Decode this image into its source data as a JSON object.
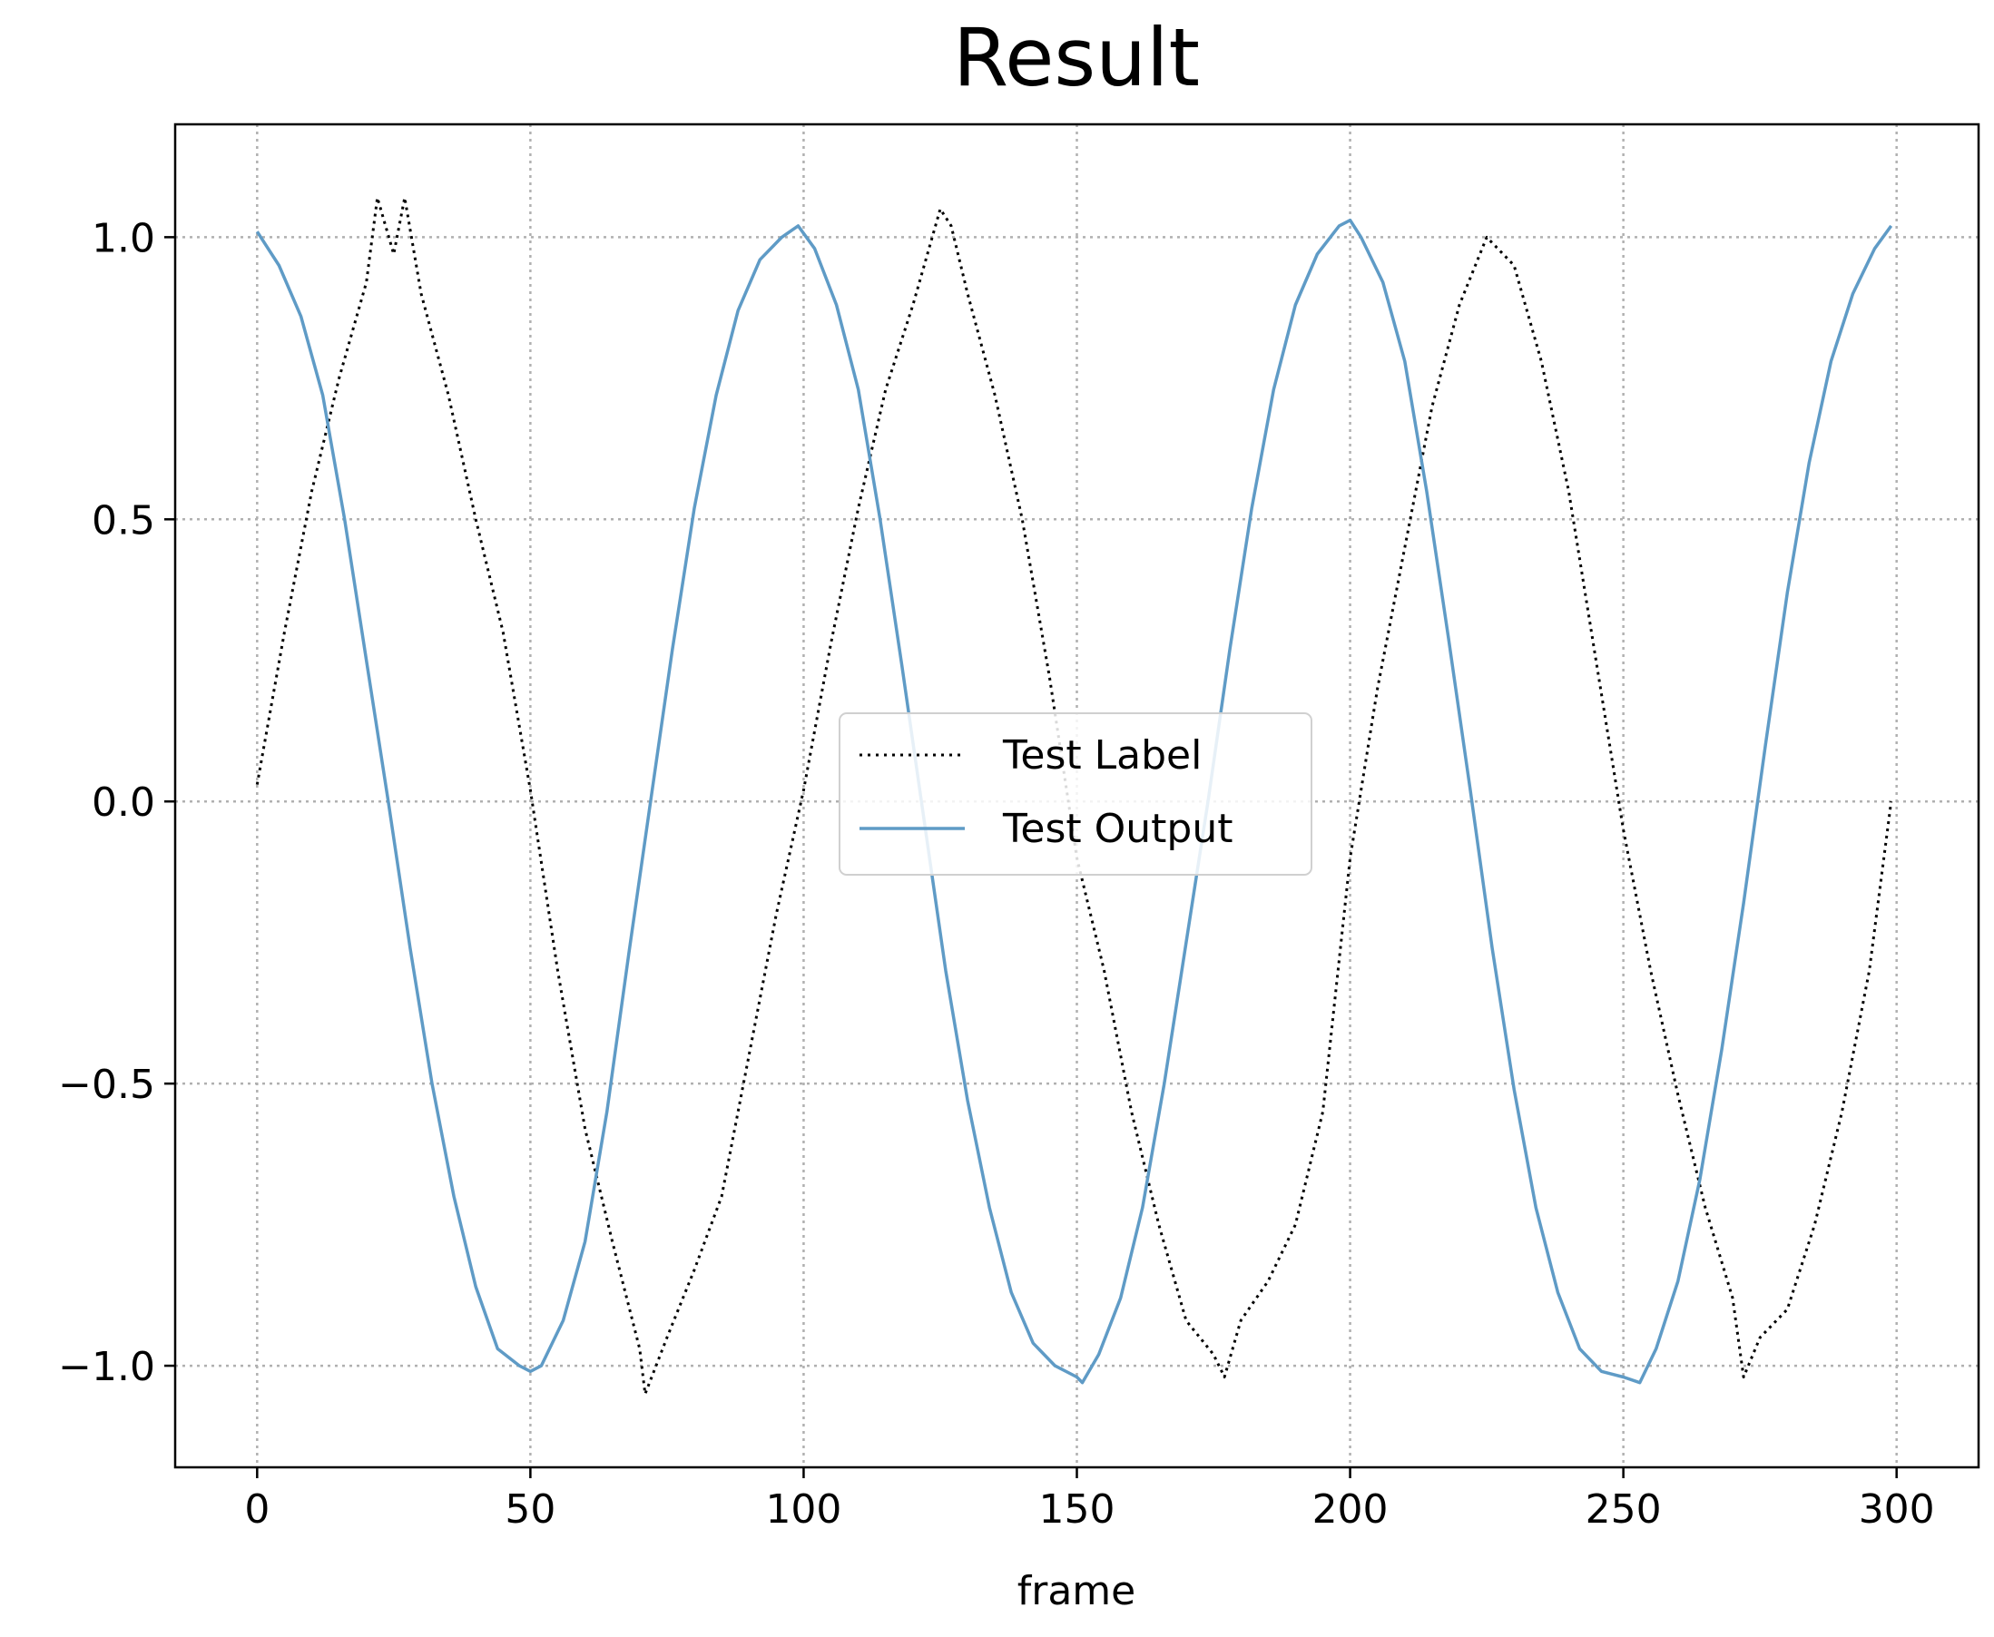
{
  "chart_data": {
    "type": "line",
    "title": "Result",
    "xlabel": "frame",
    "ylabel": "",
    "xlim": [
      -15,
      315
    ],
    "ylim": [
      -1.18,
      1.2
    ],
    "xticks": [
      0,
      50,
      100,
      150,
      200,
      250,
      300
    ],
    "yticks": [
      -1.0,
      -0.5,
      0.0,
      0.5,
      1.0
    ],
    "xtick_labels": [
      "0",
      "50",
      "100",
      "150",
      "200",
      "250",
      "300"
    ],
    "ytick_labels": [
      "−1.0",
      "−0.5",
      "0.0",
      "0.5",
      "1.0"
    ],
    "grid": true,
    "legend_position": "center",
    "series": [
      {
        "name": "Test Label",
        "color": "#000000",
        "style": "dotted",
        "x": [
          0,
          5,
          10,
          15,
          20,
          22,
          25,
          27,
          30,
          35,
          40,
          45,
          50,
          55,
          60,
          65,
          70,
          71,
          75,
          80,
          85,
          90,
          95,
          100,
          105,
          110,
          115,
          120,
          125,
          127,
          130,
          135,
          140,
          145,
          150,
          155,
          160,
          165,
          170,
          175,
          177,
          180,
          185,
          190,
          195,
          200,
          205,
          210,
          215,
          220,
          225,
          227,
          230,
          235,
          240,
          245,
          250,
          255,
          260,
          265,
          270,
          272,
          275,
          280,
          285,
          290,
          295,
          299
        ],
        "values": [
          0.03,
          0.3,
          0.55,
          0.75,
          0.92,
          1.07,
          0.97,
          1.07,
          0.9,
          0.72,
          0.5,
          0.3,
          0.02,
          -0.3,
          -0.58,
          -0.78,
          -0.97,
          -1.05,
          -0.95,
          -0.83,
          -0.7,
          -0.45,
          -0.2,
          0.02,
          0.28,
          0.52,
          0.73,
          0.88,
          1.05,
          1.02,
          0.9,
          0.72,
          0.5,
          0.22,
          -0.1,
          -0.3,
          -0.55,
          -0.75,
          -0.92,
          -0.98,
          -1.02,
          -0.92,
          -0.85,
          -0.75,
          -0.55,
          -0.1,
          0.2,
          0.45,
          0.7,
          0.88,
          1.0,
          0.98,
          0.95,
          0.78,
          0.55,
          0.25,
          -0.05,
          -0.3,
          -0.52,
          -0.72,
          -0.88,
          -1.02,
          -0.95,
          -0.9,
          -0.75,
          -0.55,
          -0.3,
          0.0
        ]
      },
      {
        "name": "Test Output",
        "color": "#5f9bc6",
        "style": "solid",
        "x": [
          0,
          4,
          8,
          12,
          16,
          20,
          24,
          28,
          32,
          36,
          40,
          44,
          48,
          50,
          52,
          56,
          60,
          64,
          68,
          72,
          76,
          80,
          84,
          88,
          92,
          96,
          99,
          102,
          106,
          110,
          114,
          118,
          122,
          126,
          130,
          134,
          138,
          142,
          146,
          150,
          151,
          154,
          158,
          162,
          166,
          170,
          174,
          178,
          182,
          186,
          190,
          194,
          198,
          200,
          202,
          206,
          210,
          214,
          218,
          222,
          226,
          230,
          234,
          238,
          242,
          246,
          250,
          253,
          256,
          260,
          264,
          268,
          272,
          276,
          280,
          284,
          288,
          292,
          296,
          299
        ],
        "values": [
          1.01,
          0.95,
          0.86,
          0.72,
          0.5,
          0.25,
          0.0,
          -0.26,
          -0.5,
          -0.7,
          -0.86,
          -0.97,
          -1.0,
          -1.01,
          -1.0,
          -0.92,
          -0.78,
          -0.55,
          -0.27,
          0.0,
          0.27,
          0.52,
          0.72,
          0.87,
          0.96,
          1.0,
          1.02,
          0.98,
          0.88,
          0.73,
          0.5,
          0.24,
          -0.03,
          -0.3,
          -0.53,
          -0.72,
          -0.87,
          -0.96,
          -1.0,
          -1.02,
          -1.03,
          -0.98,
          -0.88,
          -0.72,
          -0.5,
          -0.25,
          0.0,
          0.27,
          0.52,
          0.73,
          0.88,
          0.97,
          1.02,
          1.03,
          1.0,
          0.92,
          0.78,
          0.55,
          0.29,
          0.02,
          -0.26,
          -0.51,
          -0.72,
          -0.87,
          -0.97,
          -1.01,
          -1.02,
          -1.03,
          -0.97,
          -0.85,
          -0.67,
          -0.44,
          -0.18,
          0.1,
          0.37,
          0.6,
          0.78,
          0.9,
          0.98,
          1.02
        ]
      }
    ]
  }
}
